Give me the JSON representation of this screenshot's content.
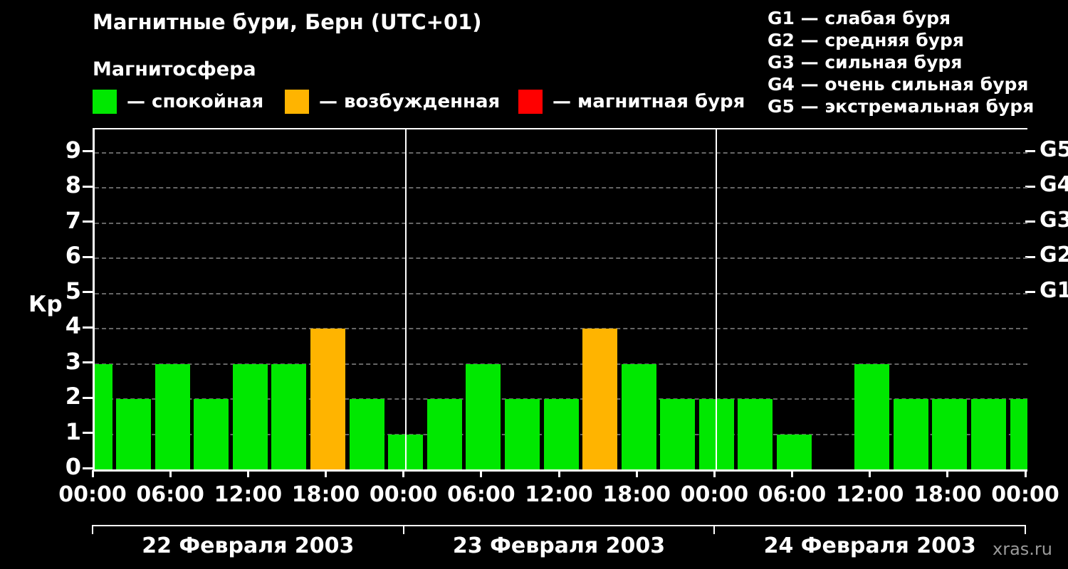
{
  "page": {
    "title": "Магнитные бури, Берн (UTC+01)",
    "subtitle": "Магнитосфера",
    "watermark": "xras.ru"
  },
  "legend": {
    "items": [
      {
        "label": "— спокойная",
        "color": "#00e800"
      },
      {
        "label": "— возбужденная",
        "color": "#ffb400"
      },
      {
        "label": "— магнитная буря",
        "color": "#ff0000"
      }
    ]
  },
  "storm_scale": {
    "items": [
      {
        "label": "G1 — слабая буря"
      },
      {
        "label": "G2 — средняя буря"
      },
      {
        "label": "G3 — сильная буря"
      },
      {
        "label": "G4 — очень сильная буря"
      },
      {
        "label": "G5 — экстремальная буря"
      }
    ]
  },
  "chart_data": {
    "type": "bar",
    "title": "Магнитные бури, Берн (UTC+01)",
    "subtitle": "Магнитосфера",
    "ylabel": "Кр",
    "ylim": [
      0,
      9
    ],
    "interval_hours": 3,
    "yticks": [
      0,
      1,
      2,
      3,
      4,
      5,
      6,
      7,
      8,
      9
    ],
    "right_axis_labels": [
      {
        "label": "G5",
        "value": 9
      },
      {
        "label": "G4",
        "value": 8
      },
      {
        "label": "G3",
        "value": 7
      },
      {
        "label": "G2",
        "value": 6
      },
      {
        "label": "G1",
        "value": 5
      }
    ],
    "xticks": [
      "00:00",
      "06:00",
      "12:00",
      "18:00",
      "00:00",
      "06:00",
      "12:00",
      "18:00",
      "00:00",
      "06:00",
      "12:00",
      "18:00",
      "00:00"
    ],
    "day_labels": [
      "22 Февраля 2003",
      "23 Февраля 2003",
      "24 Февраля 2003"
    ],
    "colors": {
      "quiet": "#00e800",
      "active": "#ffb400",
      "storm": "#ff0000"
    },
    "background": "#000000",
    "grid": "dashed-gray",
    "bars": [
      {
        "slot": 0,
        "value": 3,
        "state": "quiet"
      },
      {
        "slot": 1,
        "value": 2,
        "state": "quiet"
      },
      {
        "slot": 2,
        "value": 3,
        "state": "quiet"
      },
      {
        "slot": 3,
        "value": 2,
        "state": "quiet"
      },
      {
        "slot": 4,
        "value": 3,
        "state": "quiet"
      },
      {
        "slot": 5,
        "value": 3,
        "state": "quiet"
      },
      {
        "slot": 6,
        "value": 4,
        "state": "active"
      },
      {
        "slot": 7,
        "value": 2,
        "state": "quiet"
      },
      {
        "slot": 8,
        "value": 1,
        "state": "quiet"
      },
      {
        "slot": 9,
        "value": 2,
        "state": "quiet"
      },
      {
        "slot": 10,
        "value": 3,
        "state": "quiet"
      },
      {
        "slot": 11,
        "value": 2,
        "state": "quiet"
      },
      {
        "slot": 12,
        "value": 2,
        "state": "quiet"
      },
      {
        "slot": 13,
        "value": 4,
        "state": "active"
      },
      {
        "slot": 14,
        "value": 3,
        "state": "quiet"
      },
      {
        "slot": 15,
        "value": 2,
        "state": "quiet"
      },
      {
        "slot": 16,
        "value": 2,
        "state": "quiet"
      },
      {
        "slot": 17,
        "value": 2,
        "state": "quiet"
      },
      {
        "slot": 18,
        "value": 1,
        "state": "quiet"
      },
      {
        "slot": 19,
        "value": 0,
        "state": "quiet"
      },
      {
        "slot": 20,
        "value": 3,
        "state": "quiet"
      },
      {
        "slot": 21,
        "value": 2,
        "state": "quiet"
      },
      {
        "slot": 22,
        "value": 2,
        "state": "quiet"
      },
      {
        "slot": 23,
        "value": 2,
        "state": "quiet"
      },
      {
        "slot": 24,
        "value": 2,
        "state": "quiet"
      }
    ]
  }
}
